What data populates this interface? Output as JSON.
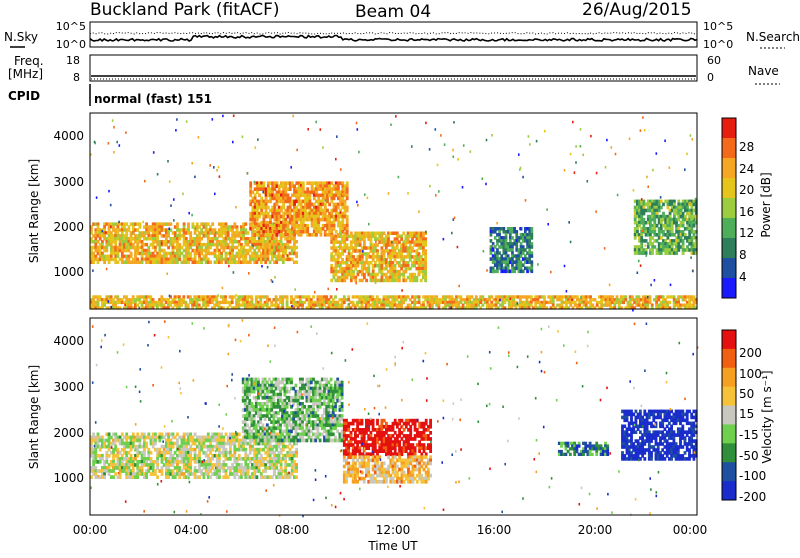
{
  "header": {
    "title": "Buckland Park (fitACF)",
    "beam": "Beam 04",
    "date": "26/Aug/2015"
  },
  "top_panel": {
    "left_label": "N.Sky",
    "right_label": "N.Search",
    "left_ticks": [
      "10^5",
      "10^0"
    ],
    "right_ticks": [
      "10^5",
      "10^0"
    ]
  },
  "freq_panel": {
    "left_label_1": "Freq.",
    "left_label_2": "[MHz]",
    "cpid_label": "CPID",
    "right_label": "Nave",
    "left_ticks": [
      "18",
      "8"
    ],
    "right_ticks": [
      "60",
      "0"
    ],
    "cpid_text": "normal (fast) 151"
  },
  "power_panel": {
    "ylabel": "Slant Range [km]",
    "yticks": [
      "4000",
      "3000",
      "2000",
      "1000"
    ],
    "colorbar_label": "Power [dB]",
    "colorbar_ticks": [
      "28",
      "24",
      "20",
      "16",
      "12",
      "8",
      "4"
    ],
    "colors": [
      "#1a1aff",
      "#1f4fa0",
      "#2e7d5b",
      "#4fae5a",
      "#9ccc3f",
      "#e5c51c",
      "#f5a623",
      "#f26a1a",
      "#e51e10"
    ]
  },
  "velocity_panel": {
    "ylabel": "Slant Range [km]",
    "yticks": [
      "4000",
      "3000",
      "2000",
      "1000"
    ],
    "colorbar_label": "Velocity [m s⁻¹]",
    "colorbar_ticks": [
      "200",
      "100",
      "50",
      "15",
      "-15",
      "-50",
      "-100",
      "-200"
    ],
    "colors": [
      "#1a2ccc",
      "#1f4fa0",
      "#2f8f3a",
      "#6fd04f",
      "#c8c8c0",
      "#f5c23a",
      "#f5a020",
      "#f06010",
      "#e51010"
    ]
  },
  "xaxis": {
    "label": "Time UT",
    "ticks": [
      "00:00",
      "04:00",
      "08:00",
      "12:00",
      "16:00",
      "20:00",
      "00:00"
    ]
  },
  "chart_data": {
    "type": "heatmap",
    "title": "Buckland Park (fitACF)",
    "xlabel": "Time UT",
    "ylabel": "Slant Range [km]",
    "xlim_hours": [
      0,
      24
    ],
    "ylim_km": [
      200,
      4500
    ],
    "panels": [
      {
        "name": "Power [dB]",
        "color_range": [
          0,
          30
        ],
        "regions": [
          {
            "t": [
              0.0,
              8.2
            ],
            "range_km": [
              1200,
              2100
            ],
            "value": 20
          },
          {
            "t": [
              6.3,
              10.2
            ],
            "range_km": [
              1800,
              3000
            ],
            "value": 22
          },
          {
            "t": [
              9.5,
              13.3
            ],
            "range_km": [
              800,
              1900
            ],
            "value": 20
          },
          {
            "t": [
              15.8,
              17.5
            ],
            "range_km": [
              1000,
              2000
            ],
            "value": 8
          },
          {
            "t": [
              21.5,
              24.0
            ],
            "range_km": [
              1400,
              2600
            ],
            "value": 12
          },
          {
            "t": [
              0.0,
              24.0
            ],
            "range_km": [
              200,
              500
            ],
            "value": 20
          }
        ]
      },
      {
        "name": "Velocity [m s-1]",
        "color_range": [
          -200,
          200
        ],
        "regions": [
          {
            "t": [
              0.0,
              8.2
            ],
            "range_km": [
              1000,
              2000
            ],
            "value": 0
          },
          {
            "t": [
              6.0,
              10.0
            ],
            "range_km": [
              1800,
              3200
            ],
            "value": -50
          },
          {
            "t": [
              10.0,
              13.5
            ],
            "range_km": [
              1500,
              2300
            ],
            "value": 200
          },
          {
            "t": [
              10.0,
              13.5
            ],
            "range_km": [
              900,
              1500
            ],
            "value": 50
          },
          {
            "t": [
              18.5,
              20.5
            ],
            "range_km": [
              1500,
              1800
            ],
            "value": -100
          },
          {
            "t": [
              21.0,
              24.0
            ],
            "range_km": [
              1400,
              2500
            ],
            "value": -200
          }
        ]
      }
    ]
  }
}
